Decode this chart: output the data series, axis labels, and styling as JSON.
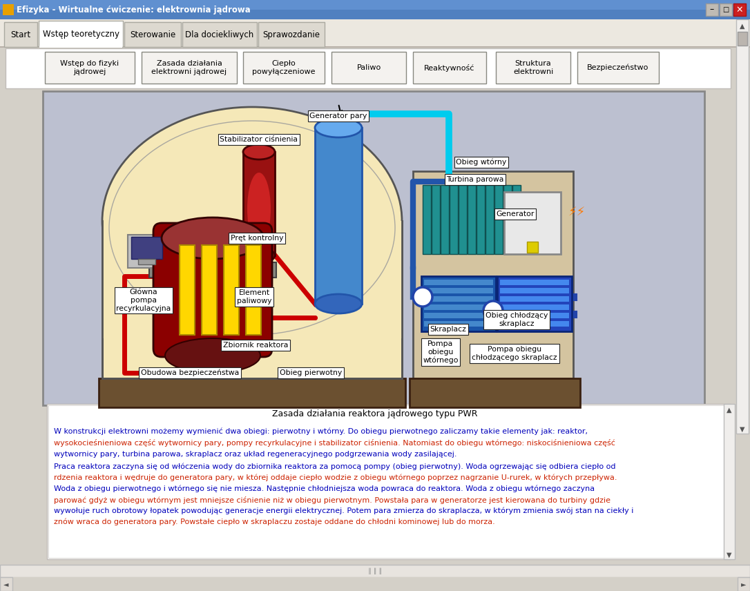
{
  "title_bar": "Efizyka - Wirtualne ćwiczenie: elektrownia jądrowa",
  "tabs": [
    "Start",
    "Wstęp teoretyczny",
    "Sterowanie",
    "Dla dociekliwych",
    "Sprawozdanie"
  ],
  "active_tab": 1,
  "buttons": [
    "Wstęp do fizyki\njądrowej",
    "Zasada działania\nelektrowni jądrowej",
    "Ciepło\npowyłączeniowe",
    "Paliwo",
    "Reaktywność",
    "Struktura\nelektrowni",
    "Bezpieczeństwo"
  ],
  "text_title": "Zasada działania reaktora jądrowego typu PWR",
  "p1": "W konstrukcji elektrowni możemy wymienić dwa obiegi: pierwotny i wtórny. Do obiegu pierwotnego zaliczamy takie elementy jak: reaktor,\nwysokocieśnieniowa część wytwornicy pary, pompy recyrkulacyjne i stabilizator ciśnienia. Natomiast do obiegu wtórnego: niskociśnieniowa część\nwytwornicy pary, turbina parowa, skraplacz oraz układ regeneracyjnego podgrzewania wody zasilającej.",
  "p2": "Praca reaktora zaczyna się od włóczenia wody do zbiornika reaktora za pomocą pompy (obieg pierwotny). Woda ogrzewając się odbiera ciepło od\nrdzenia reaktora i wędruje do generatora pary, w której oddaje ciepło wodzie z obiegu wtórnego poprzez nagrzanie U-rurek, w których przepływa.\nWoda z obiegu pierwotnego i wtórnego się nie miesza. Następnie chłodniejsza woda powraca do reaktora. Woda z obiegu wtórnego zaczyna\nparować gdyż w obiegu wtórnym jest mniejsze ciśnienie niż w obiegu pierwotnym. Powstała para w generatorze jest kierowana do turbiny gdzie\nwywołuje ruch obrotowy łopatek powodując generacje energii elektrycznej. Potem para zmierza do skraplacza, w którym zmienia swój stan na ciekły i\nznów wraca do generatora pary. Powstałe ciepło w skraplaczu zostaje oddane do chłodni kominowej lub do morza.",
  "window_bg": "#d4d0c8",
  "content_bg": "#bcc0d0",
  "diagram_bg": "#f5e8b8",
  "turbine_hall_bg": "#d4c4a0",
  "floor_brown": "#6b5030",
  "reactor_red": "#8b0000",
  "fuel_yellow": "#ffd700",
  "sg_blue": "#4488cc",
  "sg_dark": "#2255aa",
  "pres_red": "#991111",
  "pipe_red": "#cc0000",
  "pipe_cyan": "#00ccee",
  "pipe_blue": "#2244aa",
  "condenser_blue": "#1144aa",
  "text_blue": "#0000bb",
  "text_red": "#cc2200",
  "label_border": "#222222"
}
